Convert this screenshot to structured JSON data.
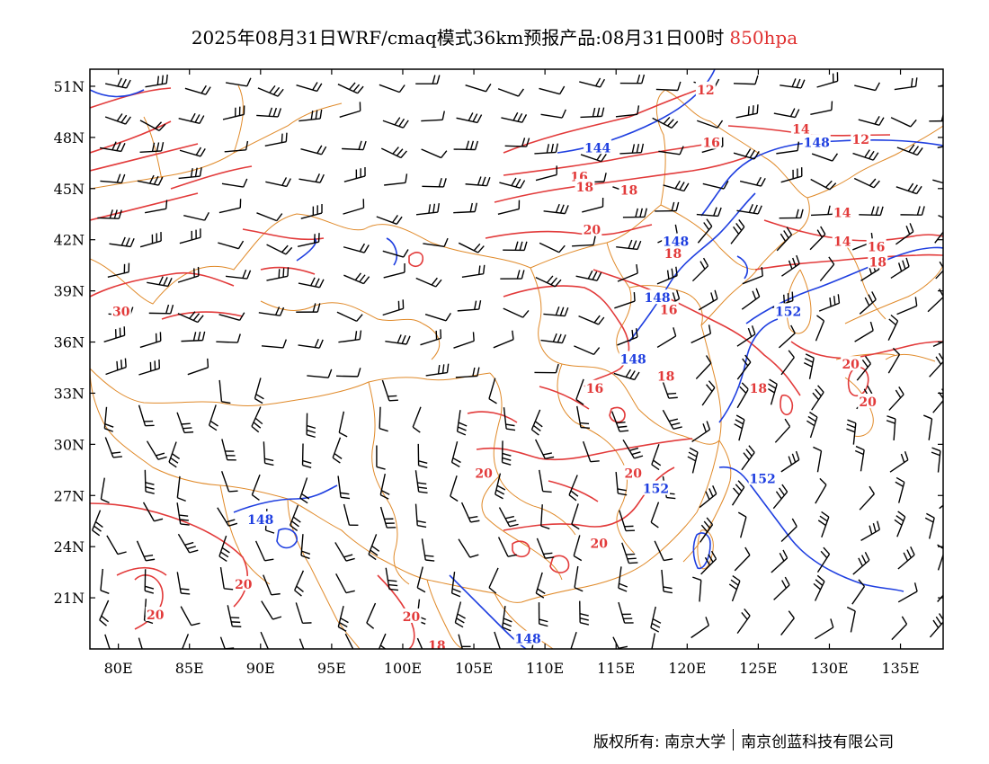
{
  "title": {
    "main": "2025年08月31日WRF/cmaq模式36km预报产品:08月31日00时",
    "level": "850hpa"
  },
  "map": {
    "lon_ticks": [
      "80E",
      "85E",
      "90E",
      "95E",
      "100E",
      "105E",
      "110E",
      "115E",
      "120E",
      "125E",
      "130E",
      "135E"
    ],
    "lat_ticks": [
      "51N",
      "48N",
      "45N",
      "42N",
      "39N",
      "36N",
      "33N",
      "30N",
      "27N",
      "24N",
      "21N"
    ],
    "lon_values": [
      80,
      85,
      90,
      95,
      100,
      105,
      110,
      115,
      120,
      125,
      130,
      135
    ],
    "lat_values": [
      51,
      48,
      45,
      42,
      39,
      36,
      33,
      30,
      27,
      24,
      21
    ],
    "lon_range": [
      78,
      138
    ],
    "lat_range": [
      18,
      52
    ],
    "temperature_labels": [
      {
        "text": "12",
        "lon": 121.3,
        "lat": 50.8
      },
      {
        "text": "14",
        "lon": 128.0,
        "lat": 48.5
      },
      {
        "text": "12",
        "lon": 132.2,
        "lat": 47.9
      },
      {
        "text": "16",
        "lon": 121.7,
        "lat": 47.7
      },
      {
        "text": "16",
        "lon": 112.4,
        "lat": 45.7
      },
      {
        "text": "18",
        "lon": 112.8,
        "lat": 45.1
      },
      {
        "text": "18",
        "lon": 115.9,
        "lat": 44.9
      },
      {
        "text": "14",
        "lon": 130.9,
        "lat": 43.6
      },
      {
        "text": "20",
        "lon": 113.3,
        "lat": 42.6
      },
      {
        "text": "14",
        "lon": 130.9,
        "lat": 41.9
      },
      {
        "text": "16",
        "lon": 133.3,
        "lat": 41.6
      },
      {
        "text": "18",
        "lon": 119.0,
        "lat": 41.2
      },
      {
        "text": "18",
        "lon": 133.4,
        "lat": 40.7
      },
      {
        "text": "30",
        "lon": 80.2,
        "lat": 37.8
      },
      {
        "text": "16",
        "lon": 118.7,
        "lat": 37.9
      },
      {
        "text": "20",
        "lon": 131.5,
        "lat": 34.7
      },
      {
        "text": "18",
        "lon": 118.5,
        "lat": 34.0
      },
      {
        "text": "16",
        "lon": 113.5,
        "lat": 33.3
      },
      {
        "text": "18",
        "lon": 125.0,
        "lat": 33.3
      },
      {
        "text": "20",
        "lon": 132.7,
        "lat": 32.5
      },
      {
        "text": "20",
        "lon": 116.2,
        "lat": 28.3
      },
      {
        "text": "20",
        "lon": 105.7,
        "lat": 28.3
      },
      {
        "text": "20",
        "lon": 113.8,
        "lat": 24.2
      },
      {
        "text": "20",
        "lon": 88.8,
        "lat": 21.8
      },
      {
        "text": "20",
        "lon": 82.6,
        "lat": 20.0
      },
      {
        "text": "20",
        "lon": 100.6,
        "lat": 19.9
      },
      {
        "text": "18",
        "lon": 102.4,
        "lat": 18.2
      }
    ],
    "height_labels": [
      {
        "text": "144",
        "lon": 113.7,
        "lat": 47.4
      },
      {
        "text": "148",
        "lon": 129.1,
        "lat": 47.7
      },
      {
        "text": "148",
        "lon": 119.2,
        "lat": 41.9
      },
      {
        "text": "148",
        "lon": 117.9,
        "lat": 38.6
      },
      {
        "text": "152",
        "lon": 127.1,
        "lat": 37.8
      },
      {
        "text": "148",
        "lon": 116.2,
        "lat": 35.0
      },
      {
        "text": "152",
        "lon": 125.3,
        "lat": 28.0
      },
      {
        "text": "152",
        "lon": 117.8,
        "lat": 27.4
      },
      {
        "text": "148",
        "lon": 90.0,
        "lat": 25.6
      },
      {
        "text": "148",
        "lon": 108.8,
        "lat": 18.6
      }
    ]
  },
  "colors": {
    "temperature": "#e23a3a",
    "height": "#1f3fe0",
    "borders": "#e08a2a",
    "wind": "#000000"
  },
  "footer": {
    "left": "版权所有: 南京大学",
    "right": "南京创蓝科技有限公司"
  }
}
